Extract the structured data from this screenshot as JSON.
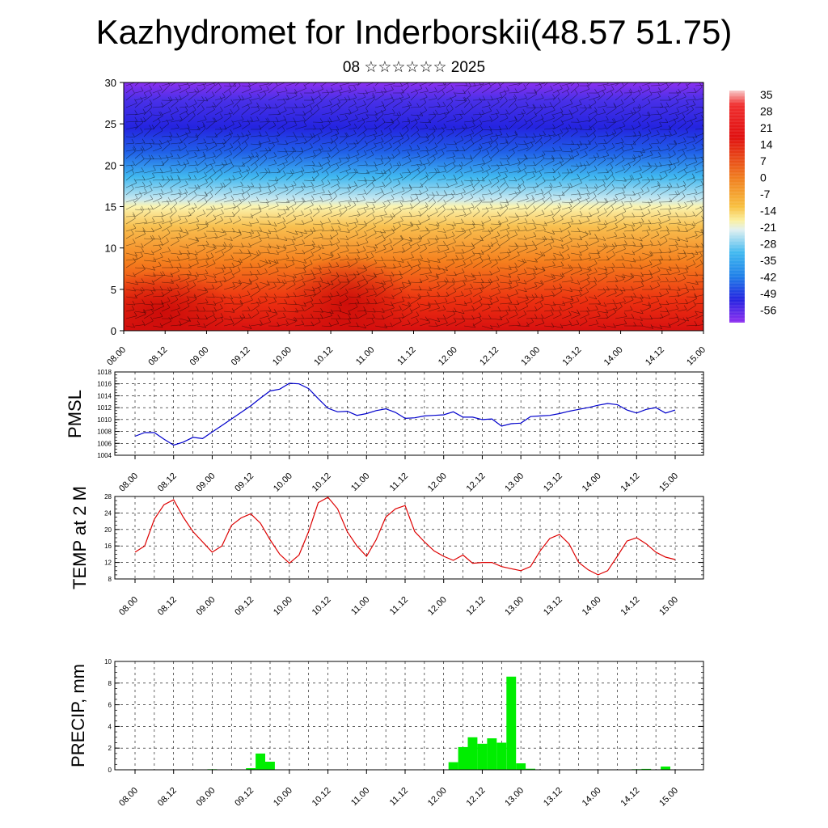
{
  "title": "Kazhydromet for Inderborskii(48.57 51.75)",
  "subtitle": "08 ☆☆☆☆☆☆ 2025",
  "chart_data": [
    {
      "type": "heatmap",
      "name": "vertical-cross-section",
      "ylim": [
        0,
        30
      ],
      "yticks": [
        0,
        5,
        10,
        15,
        20,
        25,
        30
      ],
      "xticks": [
        "08.00",
        "08.12",
        "09.00",
        "09.12",
        "10.00",
        "10.12",
        "11.00",
        "11.12",
        "12.00",
        "12.12",
        "13.00",
        "13.12",
        "14.00",
        "14.12",
        "15.00"
      ],
      "colorbar_labels": [
        "35",
        "28",
        "21",
        "14",
        "7",
        "0",
        "-7",
        "-14",
        "-21",
        "-28",
        "-35",
        "-42",
        "-49",
        "-56"
      ],
      "colors": {
        "hot": "#e01010",
        "warm": "#f08020",
        "neutral": "#f8f0a0",
        "cool": "#40b8f0",
        "cold": "#2020e0",
        "top": "#8030f0"
      }
    },
    {
      "type": "line",
      "ylabel": "PMSL",
      "ylim": [
        1004,
        1018
      ],
      "yticks": [
        1004,
        1006,
        1008,
        1010,
        1012,
        1014,
        1016,
        1018
      ],
      "xticks": [
        "08.00",
        "08.12",
        "09.00",
        "09.12",
        "10.00",
        "10.12",
        "11.00",
        "11.12",
        "12.00",
        "12.12",
        "13.00",
        "13.12",
        "14.00",
        "14.12",
        "15.00"
      ],
      "color": "#0000cc",
      "values": [
        1007.2,
        1007.8,
        1007.8,
        1006.7,
        1005.7,
        1006.2,
        1007.0,
        1006.8,
        1007.9,
        1009.0,
        1010.1,
        1011.2,
        1012.3,
        1013.6,
        1014.8,
        1015.1,
        1016.1,
        1016.0,
        1015.2,
        1013.5,
        1011.9,
        1011.3,
        1011.4,
        1010.7,
        1011.0,
        1011.5,
        1011.8,
        1011.2,
        1010.2,
        1010.3,
        1010.6,
        1010.7,
        1010.8,
        1011.3,
        1010.4,
        1010.4,
        1010.0,
        1010.1,
        1008.9,
        1009.3,
        1009.4,
        1010.5,
        1010.6,
        1010.7,
        1011.0,
        1011.4,
        1011.7,
        1012.0,
        1012.4,
        1012.7,
        1012.5,
        1011.6,
        1011.1,
        1011.7,
        1012.0,
        1011.1,
        1011.6
      ]
    },
    {
      "type": "line",
      "ylabel": "TEMP at 2 M",
      "ylim": [
        8,
        28
      ],
      "yticks": [
        8,
        12,
        16,
        20,
        24,
        28
      ],
      "xticks": [
        "08.00",
        "08.12",
        "09.00",
        "09.12",
        "10.00",
        "10.12",
        "11.00",
        "11.12",
        "12.00",
        "12.12",
        "13.00",
        "13.12",
        "14.00",
        "14.12",
        "15.00"
      ],
      "color": "#dd0000",
      "values": [
        14.5,
        16.0,
        22.5,
        26.0,
        27.2,
        23.0,
        19.5,
        17.0,
        14.5,
        16.0,
        21.0,
        22.8,
        23.8,
        21.5,
        17.5,
        14.0,
        11.8,
        13.8,
        19.5,
        26.5,
        27.8,
        25.0,
        19.5,
        16.0,
        13.5,
        17.5,
        23.0,
        25.0,
        25.8,
        19.5,
        17.0,
        14.8,
        13.5,
        12.5,
        13.8,
        11.8,
        12.0,
        12.0,
        11.0,
        10.5,
        10.0,
        11.0,
        14.8,
        17.8,
        18.8,
        16.5,
        12.0,
        10.2,
        9.0,
        10.0,
        13.5,
        17.2,
        18.0,
        16.5,
        14.5,
        13.3,
        12.7
      ]
    },
    {
      "type": "bar",
      "ylabel": "PRECIP, mm",
      "ylim": [
        0,
        10
      ],
      "yticks": [
        0,
        2,
        4,
        6,
        8,
        10
      ],
      "xticks": [
        "08.00",
        "08.12",
        "09.00",
        "09.12",
        "10.00",
        "10.12",
        "11.00",
        "11.12",
        "12.00",
        "12.12",
        "13.00",
        "13.12",
        "14.00",
        "14.12",
        "15.00"
      ],
      "color": "#00ee00",
      "values": [
        0,
        0,
        0,
        0,
        0,
        0,
        0,
        0,
        0.05,
        0,
        0,
        0,
        0.15,
        1.5,
        0.75,
        0,
        0,
        0,
        0,
        0,
        0,
        0,
        0,
        0,
        0,
        0,
        0,
        0,
        0,
        0,
        0,
        0,
        0,
        0.7,
        2.1,
        3.0,
        2.4,
        2.9,
        2.5,
        8.6,
        0.6,
        0.1,
        0,
        0,
        0,
        0,
        0,
        0,
        0,
        0,
        0,
        0,
        0.05,
        0.08,
        0,
        0.3,
        0
      ]
    }
  ]
}
